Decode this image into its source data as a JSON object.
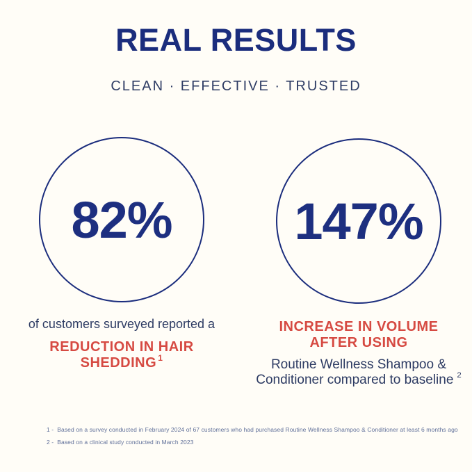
{
  "header": {
    "title": "REAL RESULTS",
    "tagline": "CLEAN · EFFECTIVE · TRUSTED"
  },
  "stats": [
    {
      "value": "82%",
      "lead": "of customers surveyed reported a",
      "highlight_line1": "REDUCTION IN HAIR",
      "highlight_line2": "SHEDDING",
      "footnote_ref": "1"
    },
    {
      "value": "147%",
      "highlight_line1": "INCREASE IN VOLUME",
      "highlight_line2": "AFTER USING",
      "detail_line1": "Routine Wellness Shampoo &",
      "detail_line2": "Conditioner compared to baseline",
      "footnote_ref": "2"
    }
  ],
  "footnotes": [
    {
      "label": "1 -",
      "text": "Based on a survey conducted in February 2024 of 67 customers who had purchased Routine Wellness Shampoo & Conditioner at least 6 months ago"
    },
    {
      "label": "2 -",
      "text": "Based on a clinical study conducted in March 2023"
    }
  ],
  "colors": {
    "navy": "#1b2d7d",
    "body_navy": "#2d3b63",
    "accent_red": "#d64a42",
    "footnote_blue": "#5f6f99",
    "background": "#fffdf7"
  }
}
